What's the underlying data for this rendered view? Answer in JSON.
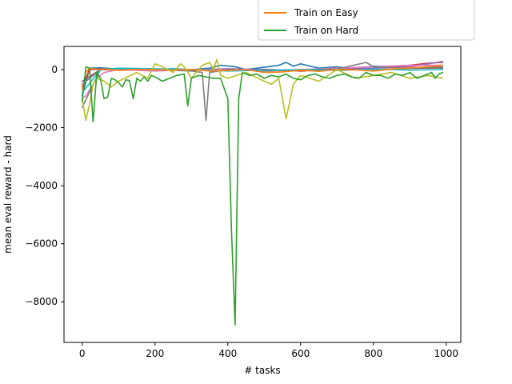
{
  "chart_data": {
    "type": "line",
    "title": "",
    "xlabel": "# tasks",
    "ylabel": "mean eval reward - hard",
    "xlim": [
      -50,
      1040
    ],
    "ylim": [
      -9400,
      800
    ],
    "xticks": [
      0,
      200,
      400,
      600,
      800,
      1000
    ],
    "yticks": [
      -8000,
      -6000,
      -4000,
      -2000,
      0
    ],
    "legend_position": "top-right, above the plot",
    "series": [
      {
        "name": "Train on Easy",
        "color": "#ff7f0e",
        "x": [
          0,
          10,
          20,
          40,
          60,
          100,
          150,
          200,
          250,
          300,
          350,
          400,
          450,
          500,
          550,
          600,
          650,
          700,
          750,
          800,
          850,
          900,
          950,
          990
        ],
        "y": [
          -700,
          -100,
          50,
          0,
          20,
          -30,
          10,
          0,
          -20,
          10,
          -50,
          -30,
          0,
          -100,
          -80,
          -20,
          -60,
          0,
          -10,
          -50,
          20,
          60,
          100,
          150
        ]
      },
      {
        "name": "Train on Hard",
        "color": "#2ca02c",
        "x": [
          0,
          10,
          20,
          30,
          40,
          50,
          60,
          70,
          80,
          90,
          100,
          110,
          120,
          130,
          140,
          150,
          160,
          170,
          180,
          190,
          200,
          220,
          240,
          260,
          280,
          290,
          300,
          320,
          340,
          360,
          380,
          400,
          410,
          420,
          430,
          440,
          460,
          480,
          500,
          520,
          540,
          560,
          580,
          600,
          620,
          640,
          660,
          680,
          700,
          720,
          740,
          760,
          780,
          800,
          820,
          840,
          860,
          880,
          900,
          920,
          940,
          960,
          970,
          980,
          990
        ],
        "y": [
          -1100,
          100,
          50,
          -1800,
          -100,
          -300,
          -1000,
          -950,
          -300,
          -350,
          -450,
          -600,
          -350,
          -380,
          -1000,
          -300,
          -400,
          -250,
          -400,
          -200,
          -250,
          -400,
          -300,
          -200,
          -150,
          -1250,
          -300,
          -200,
          -250,
          -300,
          -300,
          -1000,
          -5500,
          -8800,
          -1000,
          -100,
          -200,
          -150,
          -300,
          -200,
          -250,
          -150,
          -300,
          -350,
          -200,
          -150,
          -250,
          -300,
          -200,
          -150,
          -250,
          -300,
          -100,
          -200,
          -200,
          -300,
          -150,
          -200,
          -100,
          -300,
          -200,
          -100,
          -300,
          -150,
          -100
        ]
      },
      {
        "name": "",
        "color": "#1f77b4",
        "x": [
          0,
          20,
          50,
          100,
          150,
          200,
          250,
          300,
          350,
          380,
          420,
          450,
          500,
          540,
          560,
          580,
          600,
          650,
          700,
          750,
          800,
          850,
          900,
          950,
          990
        ],
        "y": [
          -900,
          50,
          60,
          20,
          0,
          10,
          30,
          0,
          50,
          150,
          100,
          0,
          80,
          150,
          250,
          120,
          200,
          50,
          100,
          0,
          120,
          100,
          60,
          80,
          50
        ]
      },
      {
        "name": "",
        "color": "#d62728",
        "x": [
          0,
          20,
          50,
          100,
          150,
          200,
          300,
          400,
          500,
          600,
          700,
          800,
          900,
          950,
          990
        ],
        "y": [
          -600,
          0,
          20,
          0,
          10,
          -20,
          0,
          -30,
          10,
          -50,
          0,
          50,
          150,
          220,
          250
        ]
      },
      {
        "name": "",
        "color": "#9467bd",
        "x": [
          0,
          50,
          100,
          200,
          300,
          400,
          500,
          600,
          700,
          800,
          900,
          950,
          990
        ],
        "y": [
          -500,
          0,
          10,
          20,
          -10,
          30,
          0,
          -20,
          20,
          50,
          100,
          200,
          280
        ]
      },
      {
        "name": "",
        "color": "#8c564b",
        "x": [
          0,
          50,
          100,
          200,
          300,
          400,
          500,
          600,
          700,
          800,
          900,
          990
        ],
        "y": [
          -400,
          0,
          -20,
          10,
          -30,
          0,
          -40,
          -20,
          10,
          0,
          40,
          60
        ]
      },
      {
        "name": "",
        "color": "#e377c2",
        "x": [
          0,
          10,
          20,
          30,
          40,
          60,
          100,
          200,
          300,
          400,
          500,
          600,
          700,
          800,
          900,
          990
        ],
        "y": [
          -1000,
          -900,
          -700,
          -500,
          -300,
          -100,
          0,
          -50,
          0,
          0,
          -50,
          0,
          50,
          100,
          150,
          150
        ]
      },
      {
        "name": "",
        "color": "#7f7f7f",
        "x": [
          0,
          50,
          100,
          200,
          300,
          330,
          340,
          350,
          400,
          500,
          600,
          700,
          780,
          800,
          900,
          990
        ],
        "y": [
          -1300,
          0,
          30,
          0,
          -50,
          -100,
          -1750,
          -100,
          0,
          -50,
          0,
          20,
          250,
          100,
          50,
          100
        ]
      },
      {
        "name": "",
        "color": "#bcbd22",
        "x": [
          0,
          10,
          20,
          30,
          40,
          60,
          80,
          100,
          150,
          180,
          200,
          220,
          250,
          270,
          280,
          300,
          330,
          350,
          360,
          370,
          380,
          400,
          450,
          500,
          520,
          540,
          560,
          580,
          600,
          650,
          700,
          750,
          800,
          850,
          900,
          950,
          990
        ],
        "y": [
          -1000,
          -1750,
          -1200,
          -500,
          -300,
          -400,
          -600,
          -400,
          -100,
          -300,
          200,
          100,
          -100,
          200,
          100,
          -300,
          150,
          250,
          0,
          350,
          -200,
          -300,
          -100,
          -400,
          -500,
          -300,
          -1700,
          -500,
          -200,
          -400,
          0,
          -300,
          -200,
          -100,
          -300,
          -200,
          -300
        ]
      },
      {
        "name": "",
        "color": "#17becf",
        "x": [
          0,
          50,
          100,
          200,
          300,
          400,
          500,
          600,
          700,
          800,
          900,
          990
        ],
        "y": [
          -800,
          0,
          50,
          30,
          0,
          -50,
          -20,
          0,
          -30,
          20,
          -20,
          0
        ]
      }
    ]
  }
}
